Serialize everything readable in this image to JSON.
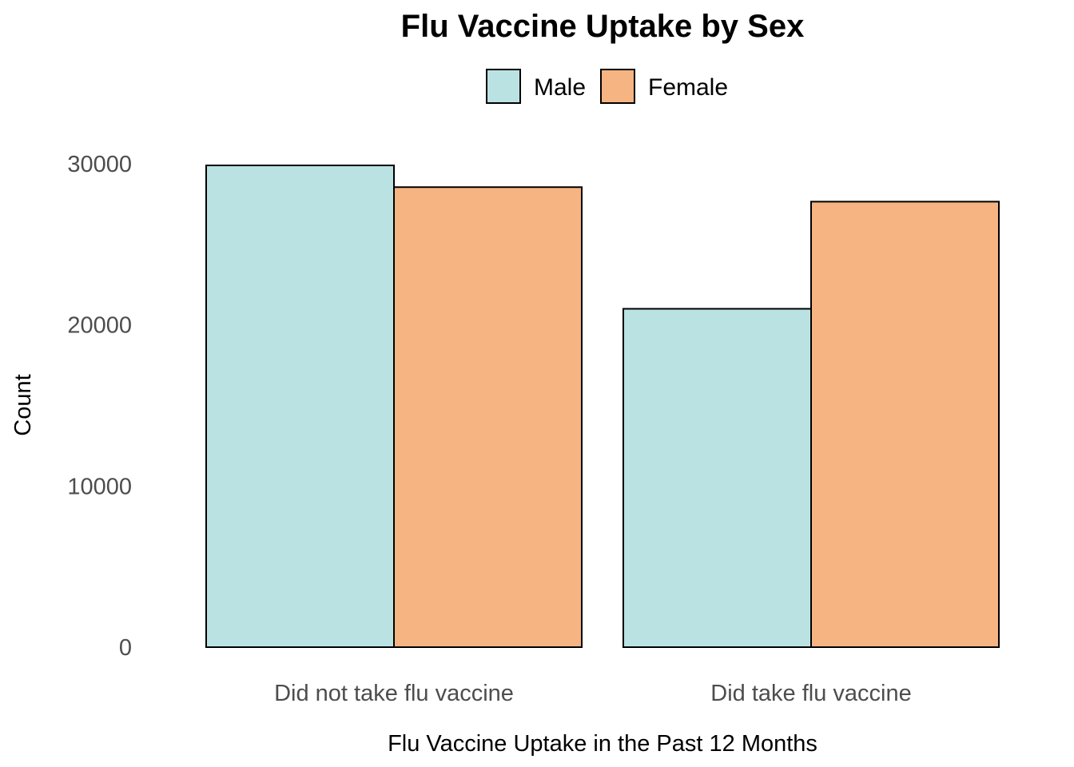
{
  "chart_data": {
    "type": "bar",
    "title": "Flu Vaccine Uptake by Sex",
    "xlabel": "Flu Vaccine Uptake in the Past 12 Months",
    "ylabel": "Count",
    "categories": [
      "Did not take flu vaccine",
      "Did take flu vaccine"
    ],
    "series": [
      {
        "name": "Male",
        "color": "#bae2e3",
        "values": [
          29900,
          21000
        ]
      },
      {
        "name": "Female",
        "color": "#f6b482",
        "values": [
          28550,
          27650
        ]
      }
    ],
    "ylim": [
      0,
      30000
    ],
    "yticks": [
      0,
      10000,
      20000,
      30000
    ],
    "ytick_labels": [
      "0",
      "10000",
      "20000",
      "30000"
    ],
    "grid": false,
    "legend_position": "top",
    "bar_outline_color": "#000000"
  }
}
